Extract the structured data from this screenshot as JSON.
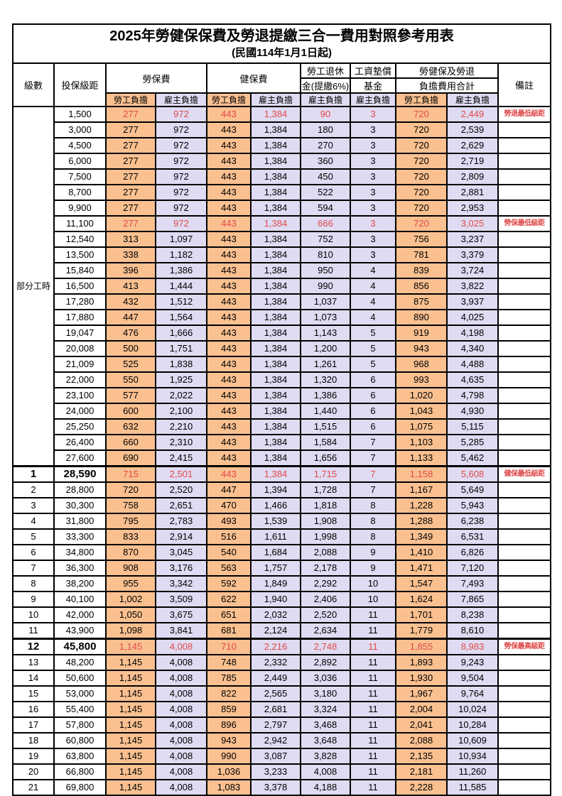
{
  "title": "2025年勞健保保費及勞退提繳三合一費用對照參考用表",
  "subtitle": "(民國114年1月1日起)",
  "colors": {
    "employee_col_bg": "#FAC090",
    "employer_col_bg": "#DFDBF2",
    "highlight_text": "#E04949",
    "grid": "#000000"
  },
  "header": {
    "level": "級數",
    "bracket": "投保級距",
    "labor_ins": "勞保費",
    "health_ins": "健保費",
    "pension_line1": "勞工退休",
    "pension_line2": "金(提繳6%)",
    "wage_fund_line1": "工資墊償",
    "wage_fund_line2": "基金",
    "total_line1": "勞健保及勞退",
    "total_line2": "負擔費用合計",
    "remark": "備註",
    "employee_burden": "勞工負擔",
    "employer_burden": "雇主負擔"
  },
  "part_time": {
    "label": "部分工時",
    "row_count": 23
  },
  "value_columns": [
    {
      "key": 0,
      "name": "labor-ins-employee",
      "tint": "orange"
    },
    {
      "key": 1,
      "name": "labor-ins-employer",
      "tint": "lav"
    },
    {
      "key": 2,
      "name": "health-ins-employee",
      "tint": "orange"
    },
    {
      "key": 3,
      "name": "health-ins-employer",
      "tint": "lav"
    },
    {
      "key": 4,
      "name": "pension-employer",
      "tint": "lav"
    },
    {
      "key": 5,
      "name": "wage-fund-employer",
      "tint": "lav"
    },
    {
      "key": 6,
      "name": "total-employee",
      "tint": "orange"
    },
    {
      "key": 7,
      "name": "total-employer",
      "tint": "lav"
    }
  ],
  "rows": [
    {
      "level": "",
      "bracket": "1,500",
      "values": [
        "277",
        "972",
        "443",
        "1,384",
        "90",
        "3",
        "720",
        "2,449"
      ],
      "note": "勞退最低級距",
      "red": true,
      "bold": false
    },
    {
      "level": "",
      "bracket": "3,000",
      "values": [
        "277",
        "972",
        "443",
        "1,384",
        "180",
        "3",
        "720",
        "2,539"
      ],
      "note": "",
      "red": false,
      "bold": false
    },
    {
      "level": "",
      "bracket": "4,500",
      "values": [
        "277",
        "972",
        "443",
        "1,384",
        "270",
        "3",
        "720",
        "2,629"
      ],
      "note": "",
      "red": false,
      "bold": false
    },
    {
      "level": "",
      "bracket": "6,000",
      "values": [
        "277",
        "972",
        "443",
        "1,384",
        "360",
        "3",
        "720",
        "2,719"
      ],
      "note": "",
      "red": false,
      "bold": false
    },
    {
      "level": "",
      "bracket": "7,500",
      "values": [
        "277",
        "972",
        "443",
        "1,384",
        "450",
        "3",
        "720",
        "2,809"
      ],
      "note": "",
      "red": false,
      "bold": false
    },
    {
      "level": "",
      "bracket": "8,700",
      "values": [
        "277",
        "972",
        "443",
        "1,384",
        "522",
        "3",
        "720",
        "2,881"
      ],
      "note": "",
      "red": false,
      "bold": false
    },
    {
      "level": "",
      "bracket": "9,900",
      "values": [
        "277",
        "972",
        "443",
        "1,384",
        "594",
        "3",
        "720",
        "2,953"
      ],
      "note": "",
      "red": false,
      "bold": false
    },
    {
      "level": "",
      "bracket": "11,100",
      "values": [
        "277",
        "972",
        "443",
        "1,384",
        "666",
        "3",
        "720",
        "3,025"
      ],
      "note": "勞保最低級距",
      "red": true,
      "bold": false
    },
    {
      "level": "",
      "bracket": "12,540",
      "values": [
        "313",
        "1,097",
        "443",
        "1,384",
        "752",
        "3",
        "756",
        "3,237"
      ],
      "note": "",
      "red": false,
      "bold": false
    },
    {
      "level": "",
      "bracket": "13,500",
      "values": [
        "338",
        "1,182",
        "443",
        "1,384",
        "810",
        "3",
        "781",
        "3,379"
      ],
      "note": "",
      "red": false,
      "bold": false
    },
    {
      "level": "",
      "bracket": "15,840",
      "values": [
        "396",
        "1,386",
        "443",
        "1,384",
        "950",
        "4",
        "839",
        "3,724"
      ],
      "note": "",
      "red": false,
      "bold": false
    },
    {
      "level": "",
      "bracket": "16,500",
      "values": [
        "413",
        "1,444",
        "443",
        "1,384",
        "990",
        "4",
        "856",
        "3,822"
      ],
      "note": "",
      "red": false,
      "bold": false
    },
    {
      "level": "",
      "bracket": "17,280",
      "values": [
        "432",
        "1,512",
        "443",
        "1,384",
        "1,037",
        "4",
        "875",
        "3,937"
      ],
      "note": "",
      "red": false,
      "bold": false
    },
    {
      "level": "",
      "bracket": "17,880",
      "values": [
        "447",
        "1,564",
        "443",
        "1,384",
        "1,073",
        "4",
        "890",
        "4,025"
      ],
      "note": "",
      "red": false,
      "bold": false
    },
    {
      "level": "",
      "bracket": "19,047",
      "values": [
        "476",
        "1,666",
        "443",
        "1,384",
        "1,143",
        "5",
        "919",
        "4,198"
      ],
      "note": "",
      "red": false,
      "bold": false
    },
    {
      "level": "",
      "bracket": "20,008",
      "values": [
        "500",
        "1,751",
        "443",
        "1,384",
        "1,200",
        "5",
        "943",
        "4,340"
      ],
      "note": "",
      "red": false,
      "bold": false
    },
    {
      "level": "",
      "bracket": "21,009",
      "values": [
        "525",
        "1,838",
        "443",
        "1,384",
        "1,261",
        "5",
        "968",
        "4,488"
      ],
      "note": "",
      "red": false,
      "bold": false
    },
    {
      "level": "",
      "bracket": "22,000",
      "values": [
        "550",
        "1,925",
        "443",
        "1,384",
        "1,320",
        "6",
        "993",
        "4,635"
      ],
      "note": "",
      "red": false,
      "bold": false
    },
    {
      "level": "",
      "bracket": "23,100",
      "values": [
        "577",
        "2,022",
        "443",
        "1,384",
        "1,386",
        "6",
        "1,020",
        "4,798"
      ],
      "note": "",
      "red": false,
      "bold": false
    },
    {
      "level": "",
      "bracket": "24,000",
      "values": [
        "600",
        "2,100",
        "443",
        "1,384",
        "1,440",
        "6",
        "1,043",
        "4,930"
      ],
      "note": "",
      "red": false,
      "bold": false
    },
    {
      "level": "",
      "bracket": "25,250",
      "values": [
        "632",
        "2,210",
        "443",
        "1,384",
        "1,515",
        "6",
        "1,075",
        "5,115"
      ],
      "note": "",
      "red": false,
      "bold": false
    },
    {
      "level": "",
      "bracket": "26,400",
      "values": [
        "660",
        "2,310",
        "443",
        "1,384",
        "1,584",
        "7",
        "1,103",
        "5,285"
      ],
      "note": "",
      "red": false,
      "bold": false
    },
    {
      "level": "",
      "bracket": "27,600",
      "values": [
        "690",
        "2,415",
        "443",
        "1,384",
        "1,656",
        "7",
        "1,133",
        "5,462"
      ],
      "note": "",
      "red": false,
      "bold": false
    },
    {
      "level": "1",
      "bracket": "28,590",
      "values": [
        "715",
        "2,501",
        "443",
        "1,384",
        "1,715",
        "7",
        "1,158",
        "5,608"
      ],
      "note": "健保最低級距",
      "red": true,
      "bold": true
    },
    {
      "level": "2",
      "bracket": "28,800",
      "values": [
        "720",
        "2,520",
        "447",
        "1,394",
        "1,728",
        "7",
        "1,167",
        "5,649"
      ],
      "note": "",
      "red": false,
      "bold": false
    },
    {
      "level": "3",
      "bracket": "30,300",
      "values": [
        "758",
        "2,651",
        "470",
        "1,466",
        "1,818",
        "8",
        "1,228",
        "5,943"
      ],
      "note": "",
      "red": false,
      "bold": false
    },
    {
      "level": "4",
      "bracket": "31,800",
      "values": [
        "795",
        "2,783",
        "493",
        "1,539",
        "1,908",
        "8",
        "1,288",
        "6,238"
      ],
      "note": "",
      "red": false,
      "bold": false
    },
    {
      "level": "5",
      "bracket": "33,300",
      "values": [
        "833",
        "2,914",
        "516",
        "1,611",
        "1,998",
        "8",
        "1,349",
        "6,531"
      ],
      "note": "",
      "red": false,
      "bold": false
    },
    {
      "level": "6",
      "bracket": "34,800",
      "values": [
        "870",
        "3,045",
        "540",
        "1,684",
        "2,088",
        "9",
        "1,410",
        "6,826"
      ],
      "note": "",
      "red": false,
      "bold": false
    },
    {
      "level": "7",
      "bracket": "36,300",
      "values": [
        "908",
        "3,176",
        "563",
        "1,757",
        "2,178",
        "9",
        "1,471",
        "7,120"
      ],
      "note": "",
      "red": false,
      "bold": false
    },
    {
      "level": "8",
      "bracket": "38,200",
      "values": [
        "955",
        "3,342",
        "592",
        "1,849",
        "2,292",
        "10",
        "1,547",
        "7,493"
      ],
      "note": "",
      "red": false,
      "bold": false
    },
    {
      "level": "9",
      "bracket": "40,100",
      "values": [
        "1,002",
        "3,509",
        "622",
        "1,940",
        "2,406",
        "10",
        "1,624",
        "7,865"
      ],
      "note": "",
      "red": false,
      "bold": false
    },
    {
      "level": "10",
      "bracket": "42,000",
      "values": [
        "1,050",
        "3,675",
        "651",
        "2,032",
        "2,520",
        "11",
        "1,701",
        "8,238"
      ],
      "note": "",
      "red": false,
      "bold": false
    },
    {
      "level": "11",
      "bracket": "43,900",
      "values": [
        "1,098",
        "3,841",
        "681",
        "2,124",
        "2,634",
        "11",
        "1,779",
        "8,610"
      ],
      "note": "",
      "red": false,
      "bold": false
    },
    {
      "level": "12",
      "bracket": "45,800",
      "values": [
        "1,145",
        "4,008",
        "710",
        "2,216",
        "2,748",
        "11",
        "1,855",
        "8,983"
      ],
      "note": "勞保最高級距",
      "red": true,
      "bold": true
    },
    {
      "level": "13",
      "bracket": "48,200",
      "values": [
        "1,145",
        "4,008",
        "748",
        "2,332",
        "2,892",
        "11",
        "1,893",
        "9,243"
      ],
      "note": "",
      "red": false,
      "bold": false
    },
    {
      "level": "14",
      "bracket": "50,600",
      "values": [
        "1,145",
        "4,008",
        "785",
        "2,449",
        "3,036",
        "11",
        "1,930",
        "9,504"
      ],
      "note": "",
      "red": false,
      "bold": false
    },
    {
      "level": "15",
      "bracket": "53,000",
      "values": [
        "1,145",
        "4,008",
        "822",
        "2,565",
        "3,180",
        "11",
        "1,967",
        "9,764"
      ],
      "note": "",
      "red": false,
      "bold": false
    },
    {
      "level": "16",
      "bracket": "55,400",
      "values": [
        "1,145",
        "4,008",
        "859",
        "2,681",
        "3,324",
        "11",
        "2,004",
        "10,024"
      ],
      "note": "",
      "red": false,
      "bold": false
    },
    {
      "level": "17",
      "bracket": "57,800",
      "values": [
        "1,145",
        "4,008",
        "896",
        "2,797",
        "3,468",
        "11",
        "2,041",
        "10,284"
      ],
      "note": "",
      "red": false,
      "bold": false
    },
    {
      "level": "18",
      "bracket": "60,800",
      "values": [
        "1,145",
        "4,008",
        "943",
        "2,942",
        "3,648",
        "11",
        "2,088",
        "10,609"
      ],
      "note": "",
      "red": false,
      "bold": false
    },
    {
      "level": "19",
      "bracket": "63,800",
      "values": [
        "1,145",
        "4,008",
        "990",
        "3,087",
        "3,828",
        "11",
        "2,135",
        "10,934"
      ],
      "note": "",
      "red": false,
      "bold": false
    },
    {
      "level": "20",
      "bracket": "66,800",
      "values": [
        "1,145",
        "4,008",
        "1,036",
        "3,233",
        "4,008",
        "11",
        "2,181",
        "11,260"
      ],
      "note": "",
      "red": false,
      "bold": false
    },
    {
      "level": "21",
      "bracket": "69,800",
      "values": [
        "1,145",
        "4,008",
        "1,083",
        "3,378",
        "4,188",
        "11",
        "2,228",
        "11,585"
      ],
      "note": "",
      "red": false,
      "bold": false
    }
  ]
}
